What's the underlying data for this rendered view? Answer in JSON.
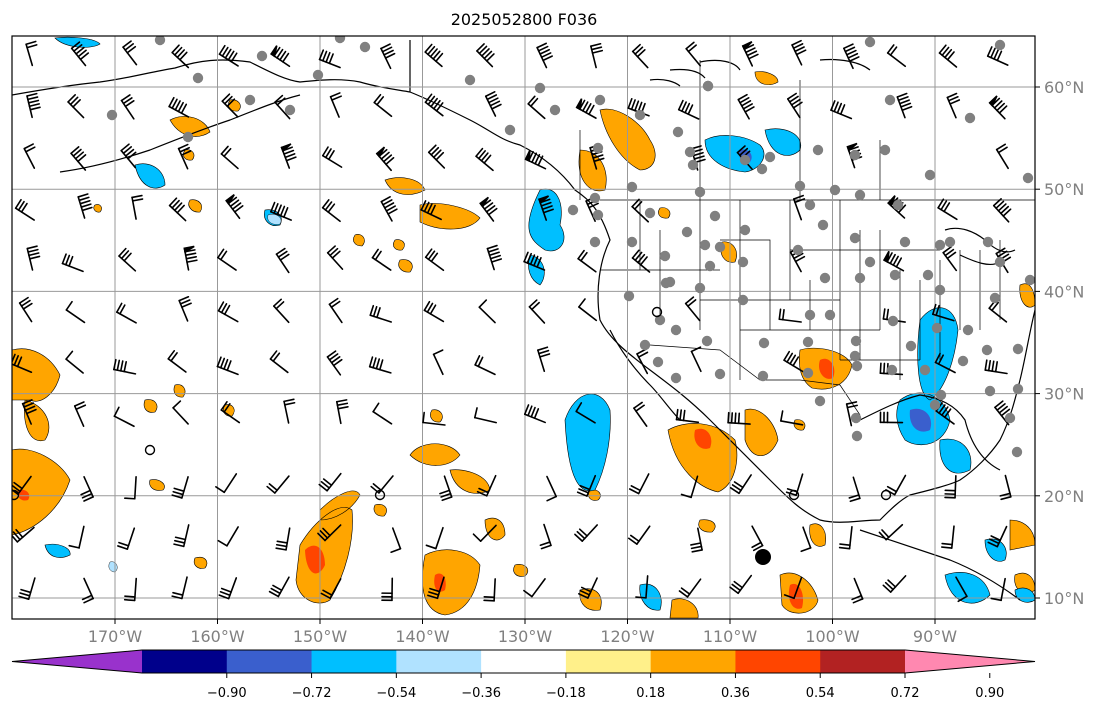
{
  "title": "2025052800 F036",
  "map": {
    "lon_range": [
      -180,
      -80
    ],
    "lat_range": [
      8,
      65
    ],
    "lat_ticks": [
      {
        "value": 10,
        "label": "10°N"
      },
      {
        "value": 20,
        "label": "20°N"
      },
      {
        "value": 30,
        "label": "30°N"
      },
      {
        "value": 40,
        "label": "40°N"
      },
      {
        "value": 50,
        "label": "50°N"
      },
      {
        "value": 60,
        "label": "60°N"
      }
    ],
    "lon_ticks": [
      {
        "value": -170,
        "label": "170°W"
      },
      {
        "value": -160,
        "label": "160°W"
      },
      {
        "value": -150,
        "label": "150°W"
      },
      {
        "value": -140,
        "label": "140°W"
      },
      {
        "value": -130,
        "label": "130°W"
      },
      {
        "value": -120,
        "label": "120°W"
      },
      {
        "value": -110,
        "label": "110°W"
      },
      {
        "value": -100,
        "label": "100°W"
      },
      {
        "value": -90,
        "label": "90°W"
      }
    ],
    "colorbar": {
      "colors": [
        "#9932cc",
        "#00008b",
        "#3a5fcd",
        "#00bfff",
        "#b0e2ff",
        "#ffffff",
        "#fff08a",
        "#ffa500",
        "#ff4500",
        "#b22222",
        "#ff88b0"
      ],
      "tick_labels": [
        "−0.90",
        "−0.72",
        "−0.54",
        "−0.36",
        "−0.18",
        "0.18",
        "0.36",
        "0.54",
        "0.72",
        "0.90"
      ]
    },
    "colors": {
      "grid": "#999999",
      "station": "#808080",
      "coast": "#000000"
    }
  }
}
